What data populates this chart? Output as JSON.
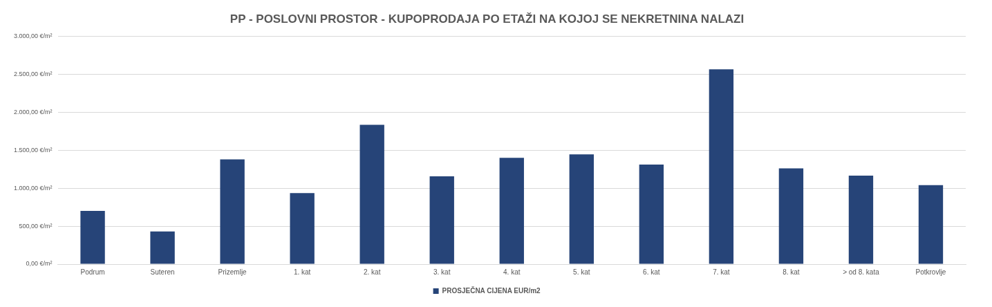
{
  "chart_data": {
    "type": "bar",
    "title": "PP - POSLOVNI PROSTOR - KUPOPRODAJA PO ETAŽI NA KOJOJ SE NEKRETNINA NALAZI",
    "categories": [
      "Podrum",
      "Suteren",
      "Prizemlje",
      "1. kat",
      "2. kat",
      "3. kat",
      "4. kat",
      "5. kat",
      "6. kat",
      "7. kat",
      "8. kat",
      "> od 8. kata",
      "Potkrovlje"
    ],
    "series": [
      {
        "name": "PROSJEČNA CIJENA EUR/m2",
        "color": "#264478",
        "values": [
          700,
          430,
          1380,
          935,
          1835,
          1155,
          1400,
          1445,
          1310,
          2565,
          1260,
          1165,
          1040
        ]
      }
    ],
    "ylim": [
      0,
      3000
    ],
    "yticks": [
      {
        "value": 0,
        "label": "0,00 €/m²"
      },
      {
        "value": 500,
        "label": "500,00 €/m²"
      },
      {
        "value": 1000,
        "label": "1.000,00 €/m²"
      },
      {
        "value": 1500,
        "label": "1.500,00 €/m²"
      },
      {
        "value": 2000,
        "label": "2.000,00 €/m²"
      },
      {
        "value": 2500,
        "label": "2.500,00 €/m²"
      },
      {
        "value": 3000,
        "label": "3.000,00 €/m²"
      }
    ],
    "grid": "y",
    "legend": "bottom"
  }
}
